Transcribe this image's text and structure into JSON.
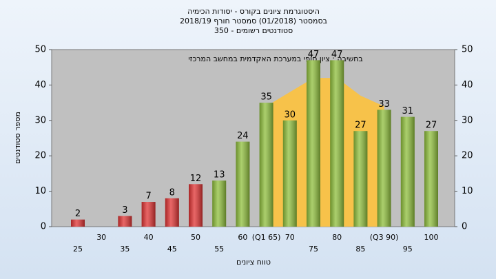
{
  "chart_data": {
    "type": "bar",
    "title_lines": [
      "היסטוגרמת ציונים בקורס - יסודות הכימיה",
      "בסמסטר  (01/2018)  סמסטר חורף 2018/19",
      "סטודנטים רשומים - 350"
    ],
    "annotation": "בחשיבה : ציון סופי במערכת האקדמית במחשב המרכזי",
    "x_label": "טווח ציונים",
    "y_label": "מספר סטודנטים",
    "categories": [
      "25",
      "30",
      "35",
      "40",
      "45",
      "50",
      "55",
      "60",
      "(Q1 65)",
      "70",
      "75",
      "80",
      "85",
      "(Q3 90)",
      "95",
      "100"
    ],
    "values": [
      2,
      null,
      3,
      7,
      8,
      12,
      13,
      24,
      35,
      30,
      47,
      47,
      27,
      33,
      31,
      27
    ],
    "colors": [
      "#e03333",
      "#e03333",
      "#e03333",
      "#e03333",
      "#e03333",
      "#e03333",
      "#8fbf3c",
      "#8fbf3c",
      "#8fbf3c",
      "#8fbf3c",
      "#8fbf3c",
      "#8fbf3c",
      "#8fbf3c",
      "#8fbf3c",
      "#8fbf3c",
      "#8fbf3c"
    ],
    "area": {
      "color": "#f7c24a",
      "values": [
        null,
        null,
        null,
        null,
        null,
        null,
        null,
        null,
        34,
        38,
        42,
        42,
        37,
        34,
        null,
        null
      ]
    },
    "ylim": [
      0,
      50
    ],
    "yticks": [
      0,
      10,
      20,
      30,
      40,
      50
    ],
    "y2lim": [
      0,
      50
    ],
    "y2ticks": [
      0,
      10,
      20,
      30,
      40,
      50
    ],
    "grid": false
  }
}
